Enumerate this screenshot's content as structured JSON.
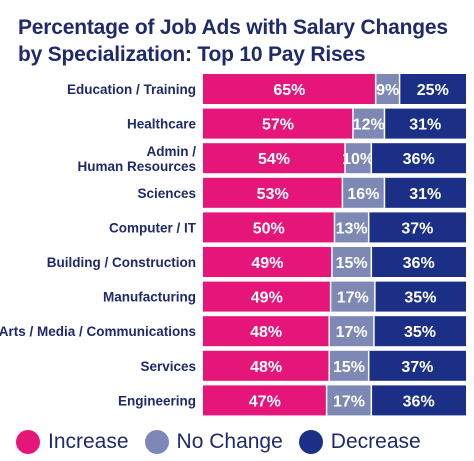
{
  "chart_data": {
    "type": "bar",
    "stacked": true,
    "orientation": "horizontal",
    "title": "Percentage of Job Ads with Salary Changes by Specialization: Top 10 Pay Rises",
    "categories": [
      "Education / Training",
      "Healthcare",
      "Admin / Human Resources",
      "Sciences",
      "Computer / IT",
      "Building / Construction",
      "Manufacturing",
      "Arts / Media / Communications",
      "Services",
      "Engineering"
    ],
    "series": [
      {
        "name": "Increase",
        "color": "#e6157a",
        "values": [
          65,
          57,
          54,
          53,
          50,
          49,
          49,
          48,
          48,
          47
        ]
      },
      {
        "name": "No Change",
        "color": "#7d88b5",
        "values": [
          9,
          12,
          10,
          16,
          13,
          15,
          17,
          17,
          15,
          17
        ]
      },
      {
        "name": "Decrease",
        "color": "#1b2f86",
        "values": [
          25,
          31,
          36,
          31,
          37,
          36,
          35,
          35,
          37,
          36
        ]
      }
    ],
    "value_suffix": "%",
    "legend_position": "bottom",
    "grid": false
  }
}
